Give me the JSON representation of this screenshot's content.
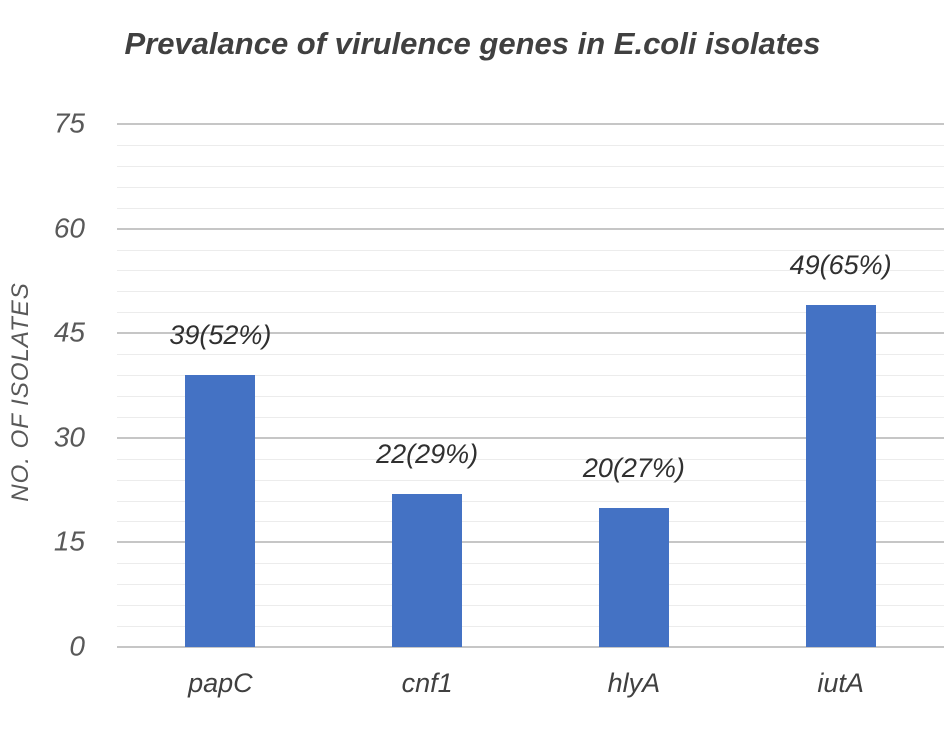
{
  "chart_data": {
    "type": "bar",
    "title": "Prevalance of virulence genes in E.coli isolates",
    "ylabel": "NO. OF ISOLATES",
    "xlabel": "",
    "categories": [
      "papC",
      "cnf1",
      "hlyA",
      "iutA"
    ],
    "values": [
      39,
      22,
      20,
      49
    ],
    "data_labels": [
      "39(52%)",
      "22(29%)",
      "20(27%)",
      "49(65%)"
    ],
    "ylim": [
      0,
      75
    ],
    "yticks": [
      0,
      15,
      30,
      45,
      60,
      75
    ],
    "minor_grid_step": 3,
    "grid": true,
    "legend_position": "none",
    "bar_color": "#4472C4",
    "major_gridline_color": "#C6C6C6",
    "minor_gridline_color": "#ECECEC",
    "title_color": "#404040",
    "tick_label_color": "#595959",
    "data_label_color": "#303030"
  }
}
